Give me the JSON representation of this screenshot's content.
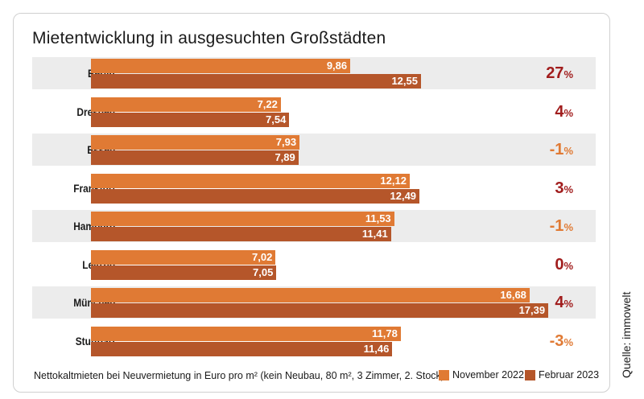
{
  "chart_data": {
    "type": "bar",
    "orientation": "horizontal",
    "title": "Mietentwicklung in ausgesuchten Großstädten",
    "xlabel": "Nettokaltmieten bei Neuvermietung in Euro pro m² (kein Neubau, 80 m², 3 Zimmer, 2. Stock):",
    "ylabel": "",
    "categories": [
      "Berlin",
      "Dresden",
      "Essen",
      "Frankfurt",
      "Hamburg",
      "Leipzig",
      "München",
      "Stuttgart"
    ],
    "series": [
      {
        "name": "November 2022",
        "color": "#e07a34",
        "values": [
          9.86,
          7.22,
          7.93,
          12.12,
          11.53,
          7.02,
          16.68,
          11.78
        ],
        "labels": [
          "9,86",
          "7,22",
          "7,93",
          "12,12",
          "11,53",
          "7,02",
          "16,68",
          "11,78"
        ]
      },
      {
        "name": "Februar 2023",
        "color": "#b5562a",
        "values": [
          12.55,
          7.54,
          7.89,
          12.49,
          11.41,
          7.05,
          17.39,
          11.46
        ],
        "labels": [
          "12,55",
          "7,54",
          "7,89",
          "12,49",
          "11,41",
          "7,05",
          "17,39",
          "11,46"
        ]
      }
    ],
    "changes": [
      {
        "value": "27",
        "unit": "%",
        "color": "#a11d1d"
      },
      {
        "value": "4",
        "unit": "%",
        "color": "#a11d1d"
      },
      {
        "value": "-1",
        "unit": "%",
        "color": "#e07a34"
      },
      {
        "value": "3",
        "unit": "%",
        "color": "#a11d1d"
      },
      {
        "value": "-1",
        "unit": "%",
        "color": "#e07a34"
      },
      {
        "value": "0",
        "unit": "%",
        "color": "#a11d1d"
      },
      {
        "value": "4",
        "unit": "%",
        "color": "#a11d1d"
      },
      {
        "value": "-3",
        "unit": "%",
        "color": "#e07a34"
      }
    ],
    "xlim": [
      0,
      17.5
    ],
    "grid": false,
    "legend_position": "bottom-right"
  },
  "source": "Quelle: immowelt"
}
